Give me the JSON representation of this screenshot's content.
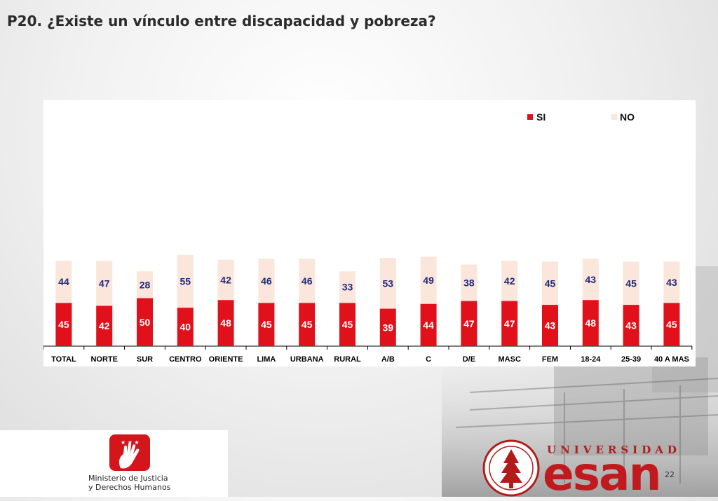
{
  "slide": {
    "title": "P20. ¿Existe un vínculo entre discapacidad y pobreza?",
    "page_number": "22"
  },
  "logos": {
    "ministry_line1": "Ministerio de Justicia",
    "ministry_line2": "y Derechos Humanos",
    "university_label": "UNIVERSIDAD",
    "university_name": "esan"
  },
  "colors": {
    "si": "#e0111a",
    "no": "#fbe6dc",
    "label_no": "#1f2a7a",
    "label_si": "#ffffff"
  },
  "chart_data": {
    "type": "bar",
    "stacked": true,
    "categories": [
      "TOTAL",
      "NORTE",
      "SUR",
      "CENTRO",
      "ORIENTE",
      "LIMA",
      "URBANA",
      "RURAL",
      "A/B",
      "C",
      "D/E",
      "MASC",
      "FEM",
      "18-24",
      "25-39",
      "40 A MAS"
    ],
    "series": [
      {
        "name": "SI",
        "values": [
          45,
          42,
          50,
          40,
          48,
          45,
          45,
          45,
          39,
          44,
          47,
          47,
          43,
          48,
          43,
          45
        ]
      },
      {
        "name": "NO",
        "values": [
          44,
          47,
          28,
          55,
          42,
          46,
          46,
          33,
          53,
          49,
          38,
          42,
          45,
          43,
          45,
          43
        ]
      }
    ],
    "ylim": [
      0,
      100
    ],
    "grid": false,
    "legend_position": "top-right"
  }
}
